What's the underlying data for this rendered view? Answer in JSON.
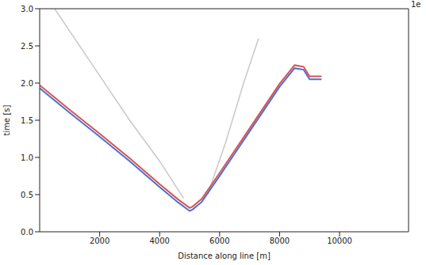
{
  "chart_data": {
    "type": "line",
    "x_label": "Distance along line [m]",
    "y_label": "time [s]",
    "annotation": "1e",
    "xlim": [
      0,
      12300
    ],
    "ylim": [
      0,
      3.0
    ],
    "xticks": [
      2000,
      4000,
      6000,
      8000,
      10000
    ],
    "yticks": [
      {
        "value": 0,
        "label": "0.0"
      },
      0.5,
      {
        "value": 1,
        "label": "1.0"
      },
      1.5,
      {
        "value": 2,
        "label": "2.0"
      },
      2.5,
      {
        "value": 3,
        "label": "3.0"
      }
    ],
    "series": [
      {
        "color": "#c8c8c8",
        "x": [
          500,
          2000,
          3000,
          4000,
          4800
        ],
        "values": [
          3.0,
          2.1,
          1.5,
          0.95,
          0.45
        ]
      },
      {
        "color": "#c8c8c8",
        "x": [
          5600,
          6200,
          6800,
          7300
        ],
        "values": [
          0.5,
          1.2,
          2.0,
          2.6
        ]
      },
      {
        "color": "#4a6fd0",
        "x": [
          0,
          1000,
          2000,
          3000,
          4000,
          4600,
          5000,
          5100,
          5400,
          6000,
          6500,
          7000,
          7500,
          8000,
          8500,
          8800,
          9000,
          9400
        ],
        "values": [
          1.93,
          1.6,
          1.28,
          0.95,
          0.6,
          0.4,
          0.28,
          0.3,
          0.4,
          0.75,
          1.05,
          1.35,
          1.65,
          1.95,
          2.2,
          2.18,
          2.05,
          2.05
        ]
      },
      {
        "color": "#d9534f",
        "x": [
          0,
          1000,
          2000,
          3000,
          4000,
          4600,
          5000,
          5100,
          5400,
          6000,
          6500,
          7000,
          7500,
          8000,
          8500,
          8800,
          9000,
          9400
        ],
        "values": [
          1.97,
          1.64,
          1.32,
          0.99,
          0.64,
          0.44,
          0.32,
          0.34,
          0.44,
          0.79,
          1.09,
          1.39,
          1.69,
          1.99,
          2.24,
          2.22,
          2.09,
          2.09
        ]
      }
    ]
  }
}
